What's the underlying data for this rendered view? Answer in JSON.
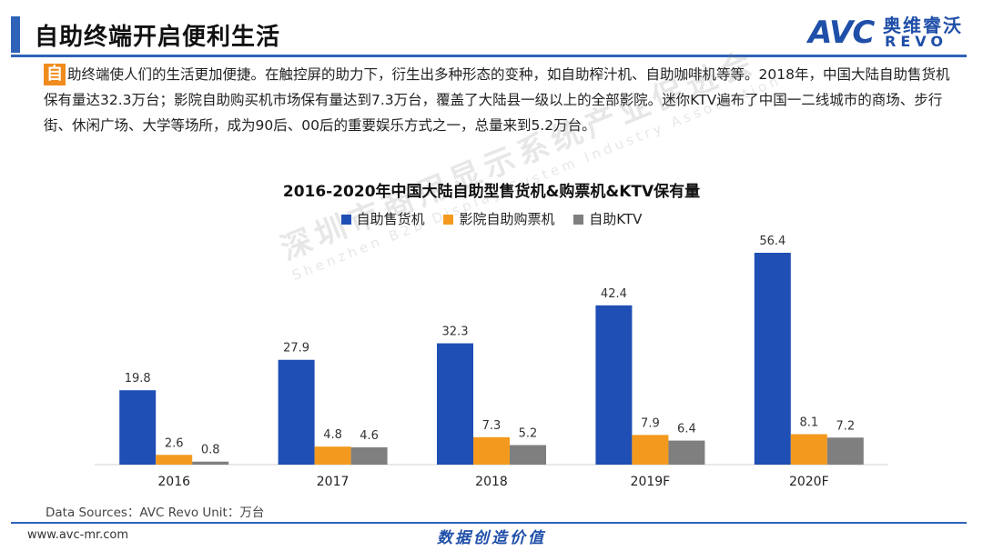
{
  "page": {
    "title": "自助终端开启便利生活",
    "logo": {
      "brand": "AVC",
      "brand_cn": "奥维睿沃",
      "brand_en": "REVO"
    },
    "intro_lead": "自",
    "intro_text": "助终端使人们的生活更加便捷。在触控屏的助力下，衍生出多种形态的变种，如自助榨汁机、自助咖啡机等等。2018年，中国大陆自助售货机保有量达32.3万台；影院自助购买机市场保有量达到7.3万台，覆盖了大陆县一级以上的全部影院。迷你KTV遍布了中国一二线城市的商场、步行街、休闲广场、大学等场所，成为90后、00后的重要娱乐方式之一，总量来到5.2万台。",
    "watermark": "深圳市商用显示系统产业促进会",
    "watermark_en": "Shenzhen B2B Display System Industry Association",
    "source": "Data Sources：AVC Revo    Unit：万台",
    "footer_url": "www.avc-mr.com",
    "footer_slogan": "数据创造价值"
  },
  "chart_data": {
    "type": "bar",
    "title": "2016-2020年中国大陆自助型售货机&购票机&KTV保有量",
    "xlabel": "",
    "ylabel": "",
    "categories": [
      "2016",
      "2017",
      "2018",
      "2019F",
      "2020F"
    ],
    "series": [
      {
        "name": "自助售货机",
        "color": "#1f4fb5",
        "values": [
          19.8,
          27.9,
          32.3,
          42.4,
          56.4
        ]
      },
      {
        "name": "影院自助购票机",
        "color": "#f39a1e",
        "values": [
          2.6,
          4.8,
          7.3,
          7.9,
          8.1
        ]
      },
      {
        "name": "自助KTV",
        "color": "#7f7f7f",
        "values": [
          0.8,
          4.6,
          5.2,
          6.4,
          7.2
        ]
      }
    ],
    "ylim": [
      0,
      56.4
    ],
    "grid": false,
    "legend_position": "top"
  }
}
